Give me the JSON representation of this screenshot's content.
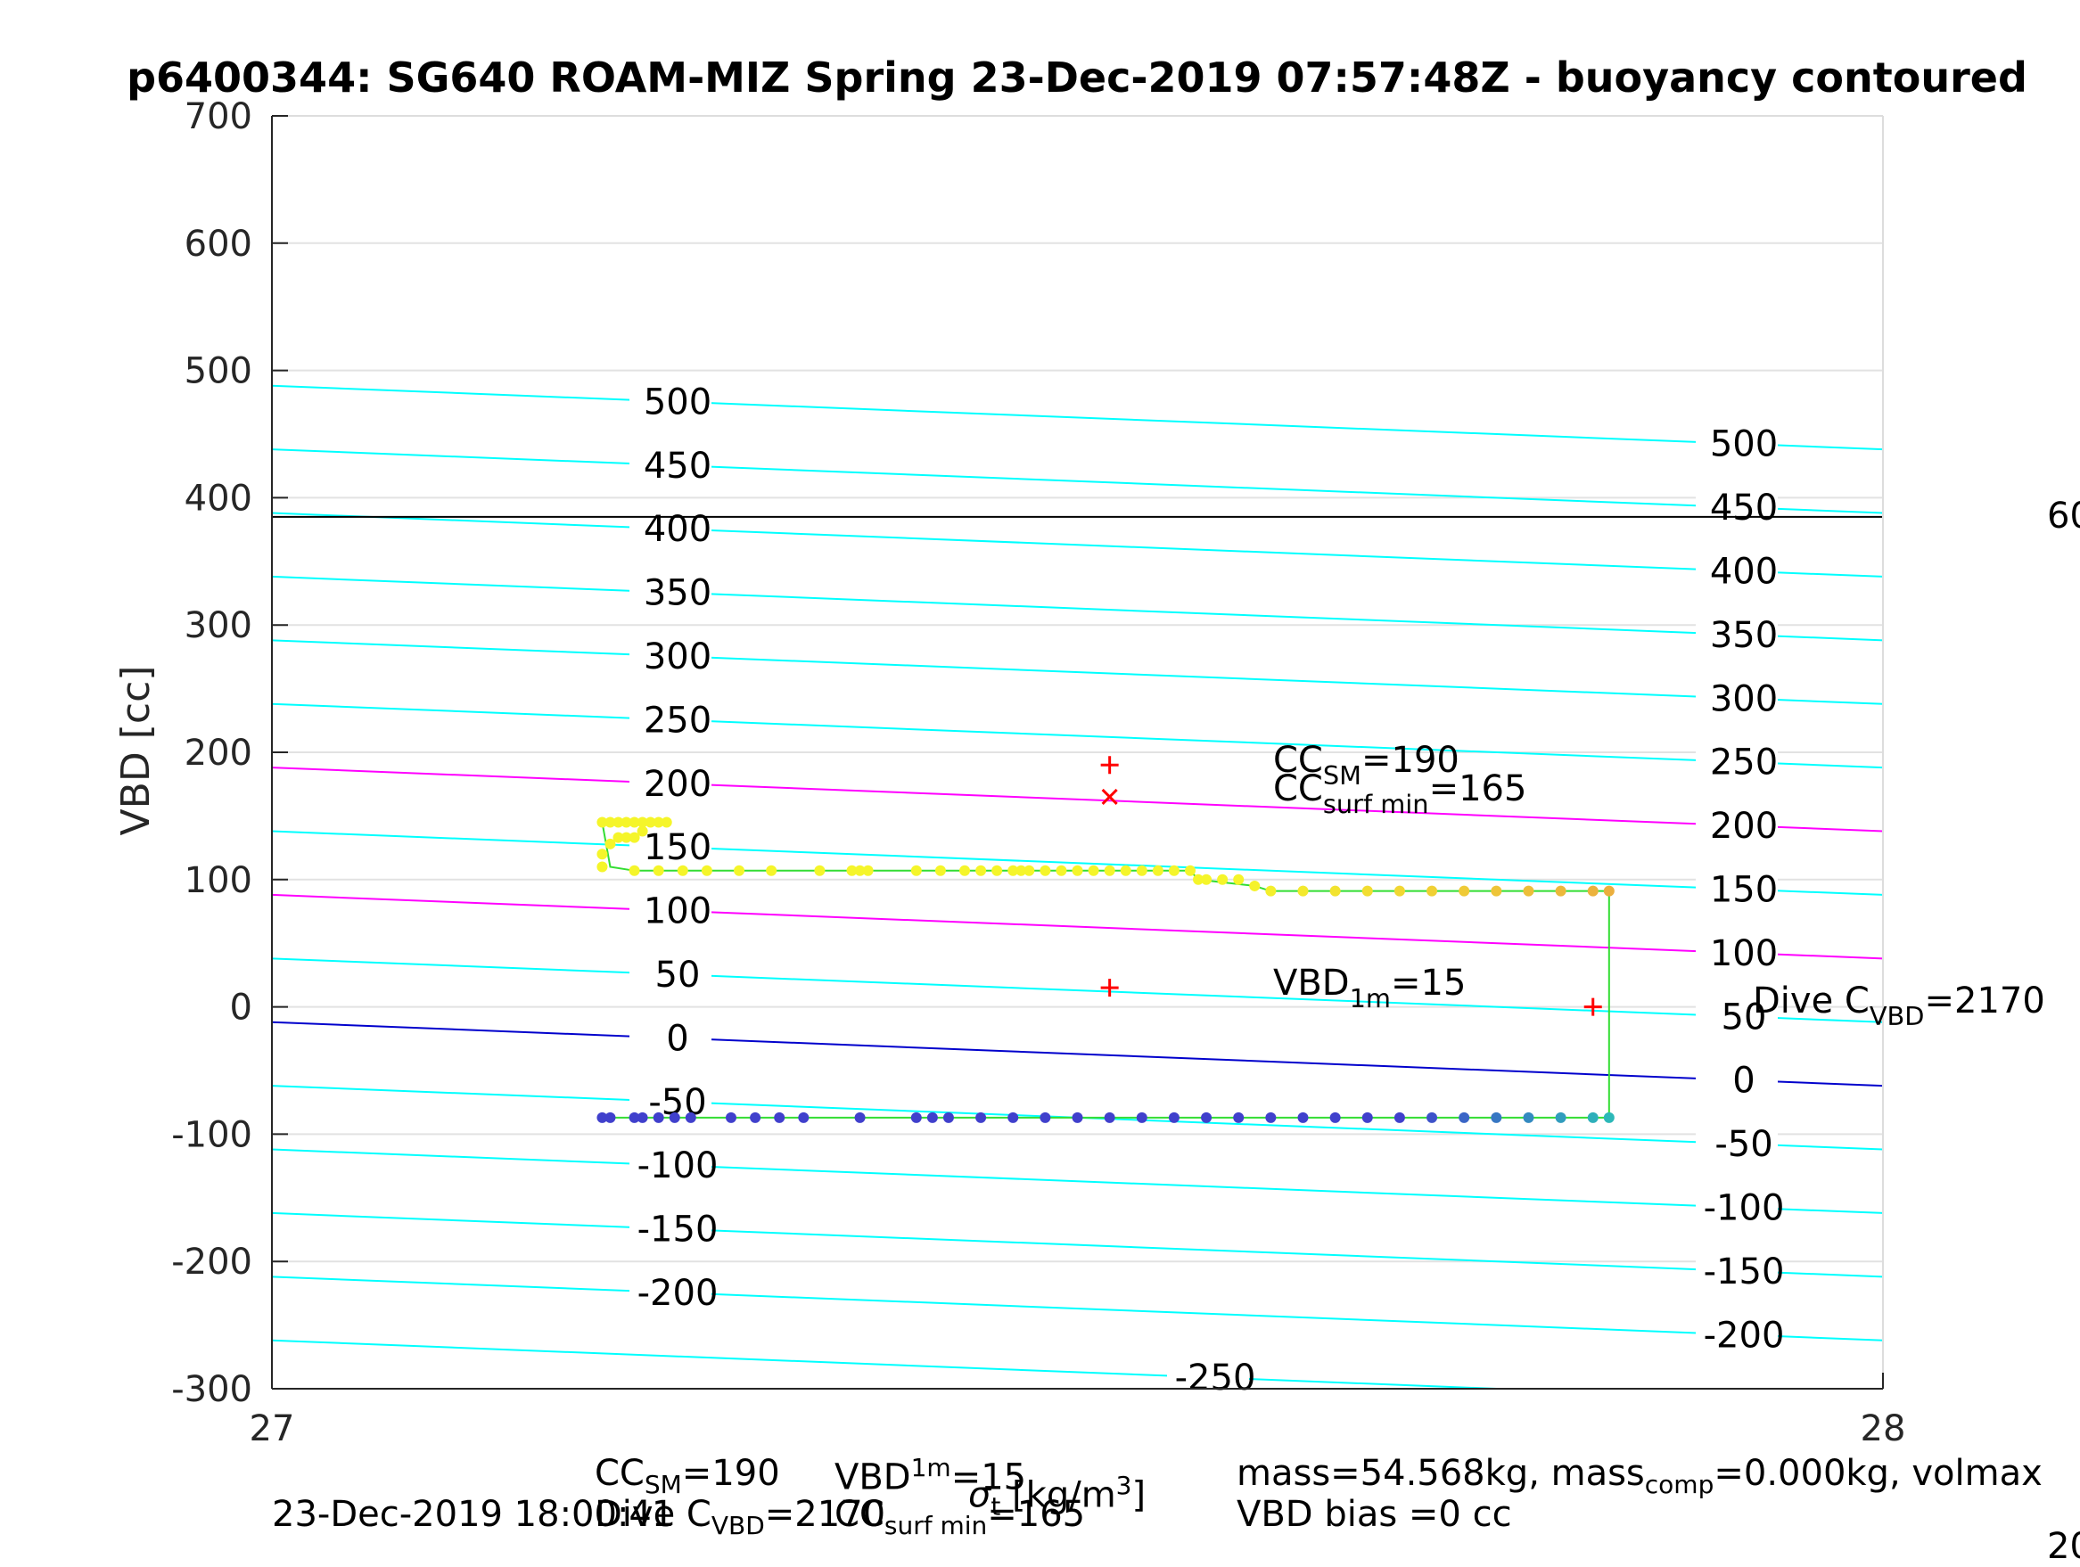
{
  "chart_data": {
    "type": "scatter",
    "title": "p6400344: SG640 ROAM-MIZ Spring 23-Dec-2019 07:57:48Z - buoyancy contoured",
    "ylabel": "VBD [cc]",
    "xlim": [
      27,
      28
    ],
    "ylim": [
      -300,
      700
    ],
    "x_ticks": [
      "27",
      "28"
    ],
    "y_ticks": [
      "-300",
      "-200",
      "-100",
      "0",
      "100",
      "200",
      "300",
      "400",
      "500",
      "600",
      "700"
    ],
    "grid": true,
    "colors": {
      "contour": "#00ffff",
      "contour_highlight": "#ff00ff",
      "neutral_line": "#0000cc",
      "reference_line": "#000000",
      "path_line": "#33dd33",
      "marker": "#ff0000",
      "dive_points": "#f5f52a",
      "climb_points": "#4040cc"
    },
    "contour_levels_left": [
      "500",
      "450",
      "400",
      "350",
      "300",
      "250",
      "200",
      "150",
      "100",
      "50",
      "0",
      "-50",
      "-100",
      "-150",
      "-200"
    ],
    "contour_levels_right": [
      "500",
      "450",
      "400",
      "350",
      "300",
      "250",
      "200",
      "150",
      "100",
      "50",
      "0",
      "-50",
      "-100",
      "-150",
      "-200"
    ],
    "contour_level_bottom": "-250",
    "highlight_contours": [
      "200",
      "100"
    ],
    "neutral_contour": "0",
    "reference_hline": 385,
    "right_edge_label": "60",
    "markers": [
      {
        "symbol": "+",
        "x": 27.52,
        "y": 190
      },
      {
        "symbol": "x",
        "x": 27.52,
        "y": 165
      },
      {
        "symbol": "+",
        "x": 27.52,
        "y": 15
      },
      {
        "symbol": "+",
        "x": 27.82,
        "y": 0
      }
    ],
    "annotations": {
      "cc_sm": {
        "main": "CC",
        "sub": "SM",
        "value": "=190"
      },
      "cc_surf": {
        "main": "CC",
        "sub": "surf min",
        "value": "=165"
      },
      "vbd_1m": {
        "main": "VBD",
        "sub": "1m",
        "value": "=15"
      },
      "dive_c": {
        "main": "Dive C",
        "sub": "VBD",
        "value": "=2170"
      }
    },
    "series": [
      {
        "points": [
          [
            27.205,
            145
          ],
          [
            27.21,
            145
          ],
          [
            27.215,
            145
          ],
          [
            27.22,
            145
          ],
          [
            27.225,
            145
          ],
          [
            27.23,
            145
          ],
          [
            27.205,
            120
          ],
          [
            27.21,
            128
          ],
          [
            27.215,
            133
          ],
          [
            27.22,
            133
          ],
          [
            27.225,
            133
          ],
          [
            27.23,
            138
          ],
          [
            27.235,
            145
          ],
          [
            27.24,
            145
          ],
          [
            27.245,
            145
          ],
          [
            27.205,
            110
          ],
          [
            27.225,
            107
          ],
          [
            27.24,
            107
          ],
          [
            27.255,
            107
          ],
          [
            27.27,
            107
          ],
          [
            27.29,
            107
          ],
          [
            27.31,
            107
          ],
          [
            27.34,
            107
          ],
          [
            27.36,
            107
          ],
          [
            27.365,
            107
          ],
          [
            27.37,
            107
          ],
          [
            27.4,
            107
          ],
          [
            27.415,
            107
          ],
          [
            27.43,
            107
          ],
          [
            27.44,
            107
          ],
          [
            27.45,
            107
          ],
          [
            27.46,
            107
          ],
          [
            27.465,
            107
          ],
          [
            27.47,
            107
          ],
          [
            27.48,
            107
          ],
          [
            27.49,
            107
          ],
          [
            27.5,
            107
          ],
          [
            27.51,
            107
          ],
          [
            27.52,
            107
          ],
          [
            27.53,
            107
          ],
          [
            27.54,
            107
          ],
          [
            27.55,
            107
          ],
          [
            27.56,
            107
          ],
          [
            27.57,
            107
          ],
          [
            27.575,
            100
          ],
          [
            27.58,
            100
          ],
          [
            27.59,
            100
          ],
          [
            27.6,
            100
          ],
          [
            27.61,
            95
          ],
          [
            27.62,
            91
          ],
          [
            27.64,
            91
          ],
          [
            27.66,
            91
          ],
          [
            27.68,
            91
          ],
          [
            27.7,
            91
          ],
          [
            27.72,
            91
          ],
          [
            27.74,
            91
          ],
          [
            27.76,
            91
          ],
          [
            27.78,
            91
          ],
          [
            27.8,
            91
          ],
          [
            27.82,
            91
          ],
          [
            27.83,
            91
          ]
        ]
      },
      {
        "points": [
          [
            27.205,
            -87
          ],
          [
            27.21,
            -87
          ],
          [
            27.225,
            -87
          ],
          [
            27.23,
            -87
          ],
          [
            27.24,
            -87
          ],
          [
            27.25,
            -87
          ],
          [
            27.26,
            -87
          ],
          [
            27.285,
            -87
          ],
          [
            27.3,
            -87
          ],
          [
            27.315,
            -87
          ],
          [
            27.33,
            -87
          ],
          [
            27.365,
            -87
          ],
          [
            27.4,
            -87
          ],
          [
            27.41,
            -87
          ],
          [
            27.42,
            -87
          ],
          [
            27.44,
            -87
          ],
          [
            27.46,
            -87
          ],
          [
            27.48,
            -87
          ],
          [
            27.5,
            -87
          ],
          [
            27.52,
            -87
          ],
          [
            27.54,
            -87
          ],
          [
            27.56,
            -87
          ],
          [
            27.58,
            -87
          ],
          [
            27.6,
            -87
          ],
          [
            27.62,
            -87
          ],
          [
            27.64,
            -87
          ],
          [
            27.66,
            -87
          ],
          [
            27.68,
            -87
          ],
          [
            27.7,
            -87
          ],
          [
            27.72,
            -87
          ],
          [
            27.74,
            -87
          ],
          [
            27.76,
            -87
          ],
          [
            27.78,
            -87
          ],
          [
            27.8,
            -87
          ],
          [
            27.82,
            -87
          ],
          [
            27.83,
            -87
          ]
        ]
      }
    ]
  },
  "footer": {
    "date": "23-Dec-2019 18:00:41",
    "cc_sm": "CC",
    "cc_sm_sub": "SM",
    "cc_sm_val": "=190",
    "vbd": "VBD",
    "vbd_sub": "1m",
    "vbd_val": "=15",
    "dive": "Dive C",
    "dive_sub": "VBD",
    "dive_val": "=2170",
    "cc2": "CC",
    "cc2_sub": "surf min",
    "cc2_val": "=165",
    "xlabel": "σ",
    "xlabel_sub": "t",
    "xlabel_unit": " [kg/m",
    "xlabel_sup": "3",
    "xlabel_end": "]",
    "mass_line": "mass=54.568kg, mass",
    "mass_sub": "comp",
    "mass_rest": "=0.000kg, volmax",
    "bias_line": "VBD bias =0 cc",
    "corner": "20"
  }
}
